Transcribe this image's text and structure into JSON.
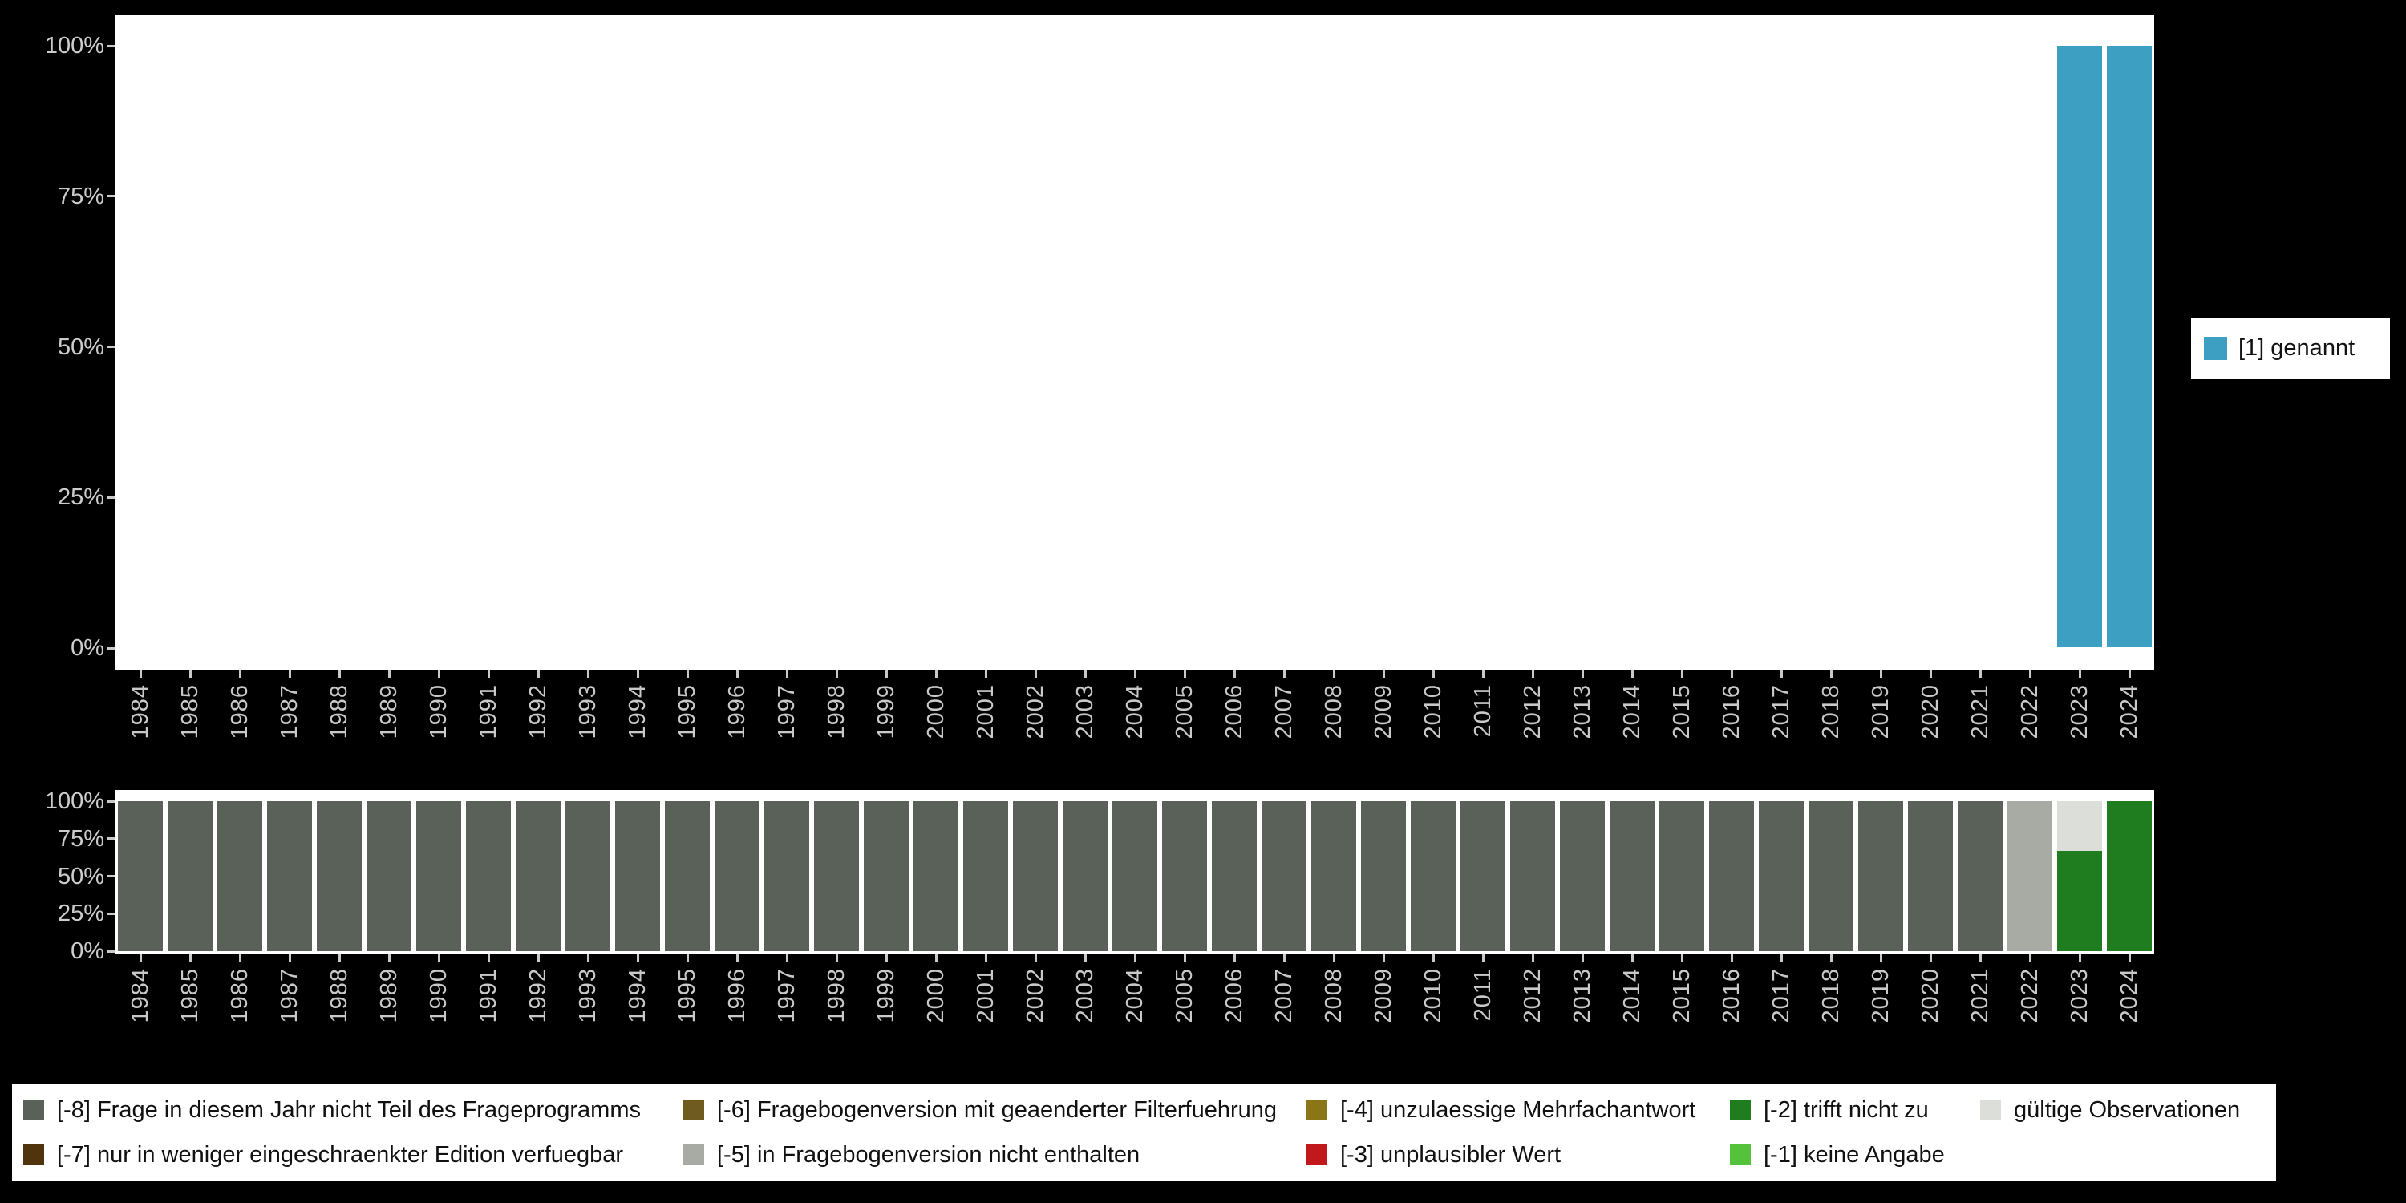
{
  "background": "#000000",
  "panel_color": "#ffffff",
  "axis_text_color": "#c9c9c9",
  "y_ticks": [
    "100%",
    "75%",
    "50%",
    "25%",
    "0%"
  ],
  "years": [
    1984,
    1985,
    1986,
    1987,
    1988,
    1989,
    1990,
    1991,
    1992,
    1993,
    1994,
    1995,
    1996,
    1997,
    1998,
    1999,
    2000,
    2001,
    2002,
    2003,
    2004,
    2005,
    2006,
    2007,
    2008,
    2009,
    2010,
    2011,
    2012,
    2013,
    2014,
    2015,
    2016,
    2017,
    2018,
    2019,
    2020,
    2021,
    2022,
    2023,
    2024
  ],
  "top_legend": {
    "label": "[1] genannt",
    "color": "#3da0c2"
  },
  "chart_data": [
    {
      "type": "bar",
      "title": "",
      "xlabel": "",
      "ylabel": "",
      "ylim": [
        0,
        100
      ],
      "y_tick_labels": [
        "100%",
        "75%",
        "50%",
        "25%",
        "0%"
      ],
      "legend_position": "right",
      "x": [
        1984,
        1985,
        1986,
        1987,
        1988,
        1989,
        1990,
        1991,
        1992,
        1993,
        1994,
        1995,
        1996,
        1997,
        1998,
        1999,
        2000,
        2001,
        2002,
        2003,
        2004,
        2005,
        2006,
        2007,
        2008,
        2009,
        2010,
        2011,
        2012,
        2013,
        2014,
        2015,
        2016,
        2017,
        2018,
        2019,
        2020,
        2021,
        2022,
        2023,
        2024
      ],
      "series": [
        {
          "key": "1",
          "name": "[1] genannt",
          "color": "#3da0c2",
          "values": [
            0,
            0,
            0,
            0,
            0,
            0,
            0,
            0,
            0,
            0,
            0,
            0,
            0,
            0,
            0,
            0,
            0,
            0,
            0,
            0,
            0,
            0,
            0,
            0,
            0,
            0,
            0,
            0,
            0,
            0,
            0,
            0,
            0,
            0,
            0,
            0,
            0,
            0,
            0,
            100,
            100
          ]
        }
      ]
    },
    {
      "type": "bar",
      "stacked": true,
      "title": "",
      "xlabel": "",
      "ylabel": "",
      "ylim": [
        0,
        100
      ],
      "y_tick_labels": [
        "100%",
        "75%",
        "50%",
        "25%",
        "0%"
      ],
      "legend_position": "bottom",
      "x": [
        1984,
        1985,
        1986,
        1987,
        1988,
        1989,
        1990,
        1991,
        1992,
        1993,
        1994,
        1995,
        1996,
        1997,
        1998,
        1999,
        2000,
        2001,
        2002,
        2003,
        2004,
        2005,
        2006,
        2007,
        2008,
        2009,
        2010,
        2011,
        2012,
        2013,
        2014,
        2015,
        2016,
        2017,
        2018,
        2019,
        2020,
        2021,
        2022,
        2023,
        2024
      ],
      "series": [
        {
          "key": "-8",
          "name": "[-8] Frage in diesem Jahr nicht Teil des Frageprogramms",
          "color": "#5a6159",
          "values": [
            100,
            100,
            100,
            100,
            100,
            100,
            100,
            100,
            100,
            100,
            100,
            100,
            100,
            100,
            100,
            100,
            100,
            100,
            100,
            100,
            100,
            100,
            100,
            100,
            100,
            100,
            100,
            100,
            100,
            100,
            100,
            100,
            100,
            100,
            100,
            100,
            100,
            100,
            0,
            0,
            0
          ]
        },
        {
          "key": "-5",
          "name": "[-5] in Fragebogenversion nicht enthalten",
          "color": "#a8aaa4",
          "values": [
            0,
            0,
            0,
            0,
            0,
            0,
            0,
            0,
            0,
            0,
            0,
            0,
            0,
            0,
            0,
            0,
            0,
            0,
            0,
            0,
            0,
            0,
            0,
            0,
            0,
            0,
            0,
            0,
            0,
            0,
            0,
            0,
            0,
            0,
            0,
            0,
            0,
            0,
            100,
            0,
            0
          ]
        },
        {
          "key": "-2",
          "name": "[-2] trifft nicht zu",
          "color": "#1f7d1f",
          "values": [
            0,
            0,
            0,
            0,
            0,
            0,
            0,
            0,
            0,
            0,
            0,
            0,
            0,
            0,
            0,
            0,
            0,
            0,
            0,
            0,
            0,
            0,
            0,
            0,
            0,
            0,
            0,
            0,
            0,
            0,
            0,
            0,
            0,
            0,
            0,
            0,
            0,
            0,
            0,
            67,
            100
          ]
        },
        {
          "key": "valid",
          "name": "gültige Observationen",
          "color": "#dcded9",
          "values": [
            0,
            0,
            0,
            0,
            0,
            0,
            0,
            0,
            0,
            0,
            0,
            0,
            0,
            0,
            0,
            0,
            0,
            0,
            0,
            0,
            0,
            0,
            0,
            0,
            0,
            0,
            0,
            0,
            0,
            0,
            0,
            0,
            0,
            0,
            0,
            0,
            0,
            0,
            0,
            33,
            0
          ]
        }
      ]
    }
  ],
  "missing_legend": {
    "items": [
      {
        "key": "-8",
        "label": "[-8] Frage in diesem Jahr nicht Teil des Frageprogramms",
        "color": "#5a6159"
      },
      {
        "key": "-6",
        "label": "[-6] Fragebogenversion mit geaenderter Filterfuehrung",
        "color": "#6f5a1f"
      },
      {
        "key": "-4",
        "label": "[-4] unzulaessige Mehrfachantwort",
        "color": "#8a7616"
      },
      {
        "key": "-2",
        "label": "[-2] trifft nicht zu",
        "color": "#1f7d1f"
      },
      {
        "key": "valid",
        "label": "gültige Observationen",
        "color": "#dcded9"
      },
      {
        "key": "-7",
        "label": "[-7] nur in weniger eingeschraenkter Edition verfuegbar",
        "color": "#4f340d"
      },
      {
        "key": "-5",
        "label": "[-5] in Fragebogenversion nicht enthalten",
        "color": "#a8aaa4"
      },
      {
        "key": "-3",
        "label": "[-3] unplausibler Wert",
        "color": "#c0181b"
      },
      {
        "key": "-1",
        "label": "[-1] keine Angabe",
        "color": "#55c23b"
      }
    ]
  }
}
